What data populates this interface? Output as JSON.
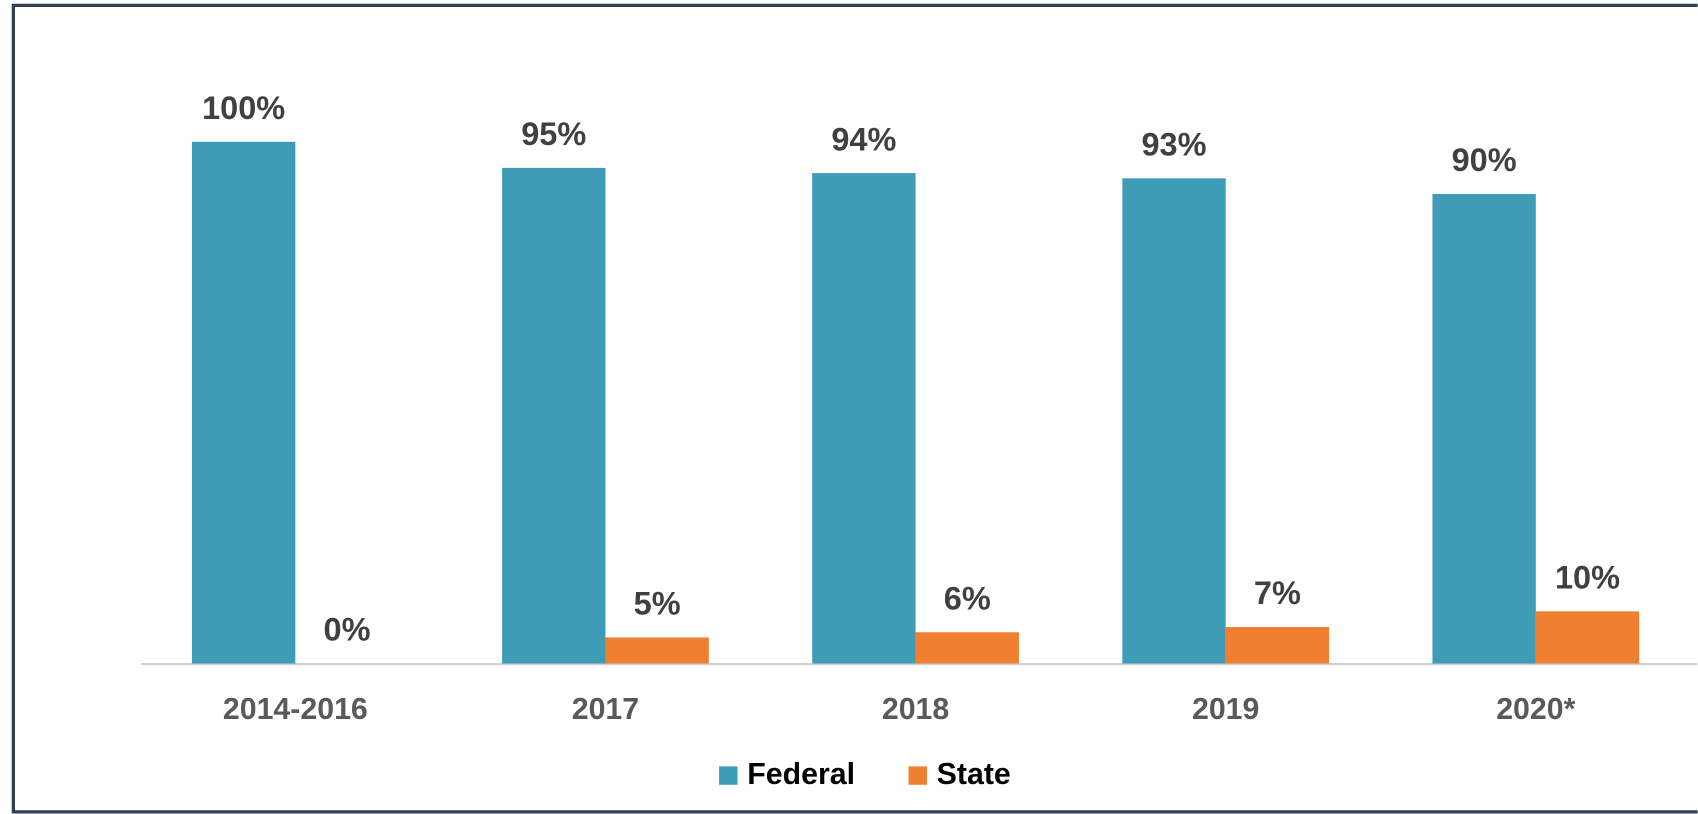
{
  "chart_data": {
    "type": "bar",
    "categories": [
      "2014-2016",
      "2017",
      "2018",
      "2019",
      "2020*"
    ],
    "series": [
      {
        "name": "Federal",
        "color": "#3e9cb6",
        "values": [
          100,
          95,
          94,
          93,
          90
        ],
        "value_labels": [
          "100%",
          "95%",
          "94%",
          "93%",
          "90%"
        ]
      },
      {
        "name": "State",
        "color": "#f07f2f",
        "values": [
          0,
          5,
          6,
          7,
          10
        ],
        "value_labels": [
          "0%",
          "5%",
          "6%",
          "7%",
          "10%"
        ]
      }
    ],
    "legend": "bottom"
  }
}
